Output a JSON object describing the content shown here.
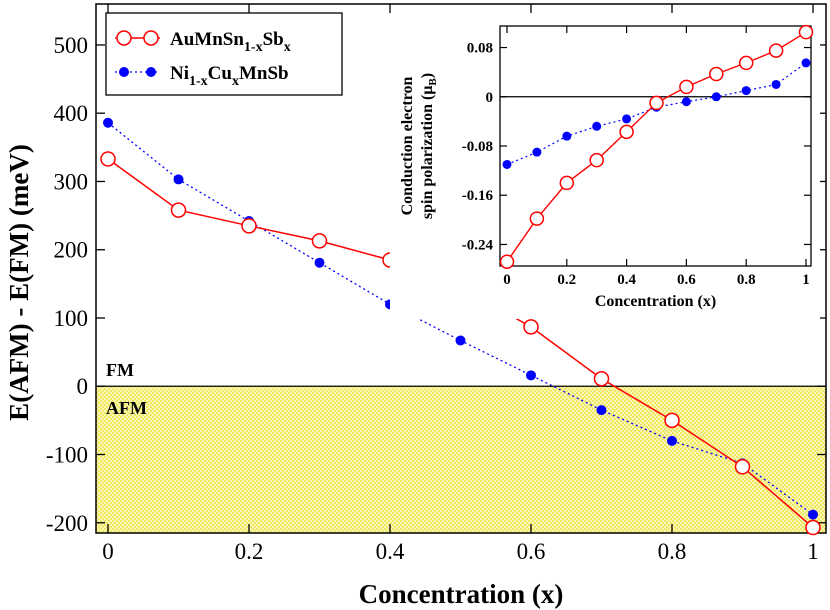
{
  "chart_data": [
    {
      "type": "line",
      "xlabel": "Concentration  (x)",
      "ylabel": "E(AFM) - E(FM)   (meV)",
      "xlim": [
        0,
        1
      ],
      "ylim": [
        -215,
        560
      ],
      "x_ticks": [
        0,
        0.2,
        0.4,
        0.6,
        0.8,
        1
      ],
      "x_tick_labels": [
        "0",
        "0.2",
        "0.4",
        "0.6",
        "0.8",
        "1"
      ],
      "y_ticks": [
        -200,
        -100,
        0,
        100,
        200,
        300,
        400,
        500
      ],
      "y_tick_labels": [
        "-200",
        "-100",
        "0",
        "100",
        "200",
        "300",
        "400",
        "500"
      ],
      "grid": false,
      "legend_position": "top-left",
      "regions": [
        {
          "label": "FM",
          "range": "above 0",
          "color": "#ffffff"
        },
        {
          "label": "AFM",
          "range": "below 0",
          "color": "#f5f07a"
        }
      ],
      "series": [
        {
          "name_main": "AuMnSn",
          "name_sub1": "1-x",
          "name_mid": "Sb",
          "name_sub2": "x",
          "color": "#ff0000",
          "marker": "open-circle",
          "line_style": "solid",
          "x": [
            0,
            0.1,
            0.2,
            0.3,
            0.4,
            0.5,
            0.6,
            0.7,
            0.8,
            0.9,
            1.0
          ],
          "y": [
            333,
            258,
            235,
            213,
            185,
            145,
            87,
            11,
            -50,
            -118,
            -207
          ]
        },
        {
          "name_main": "Ni",
          "name_sub1": "1-x",
          "name_mid": "Cu",
          "name_sub2": "x",
          "name_tail": "MnSb",
          "color": "#0000ff",
          "marker": "filled-circle",
          "line_style": "dotted",
          "x": [
            0,
            0.1,
            0.2,
            0.3,
            0.4,
            0.5,
            0.6,
            0.7,
            0.8,
            0.9,
            1.0
          ],
          "y": [
            386,
            303,
            242,
            181,
            120,
            67,
            16,
            -35,
            -80,
            -113,
            -188
          ]
        }
      ]
    },
    {
      "type": "line",
      "xlabel": "Concentration  (x)",
      "ylabel_line1": "Conduction electron",
      "ylabel_line2": "spin polarization (μ",
      "ylabel_sub": "B",
      "ylabel_close": ")",
      "xlim": [
        0,
        1
      ],
      "ylim": [
        -0.275,
        0.115
      ],
      "x_ticks": [
        0,
        0.2,
        0.4,
        0.6,
        0.8,
        1
      ],
      "x_tick_labels": [
        "0",
        "0.2",
        "0.4",
        "0.6",
        "0.8",
        "1"
      ],
      "y_ticks": [
        -0.24,
        -0.16,
        -0.08,
        0,
        0.08
      ],
      "y_tick_labels": [
        "-0.24",
        "-0.16",
        "-0.08",
        "0",
        "0.08"
      ],
      "zero_line": true,
      "series": [
        {
          "color": "#ff0000",
          "marker": "open-circle",
          "line_style": "solid",
          "x": [
            0,
            0.1,
            0.2,
            0.3,
            0.4,
            0.5,
            0.6,
            0.7,
            0.8,
            0.9,
            1.0
          ],
          "y": [
            -0.268,
            -0.198,
            -0.14,
            -0.103,
            -0.057,
            -0.01,
            0.016,
            0.037,
            0.055,
            0.075,
            0.105
          ]
        },
        {
          "color": "#0000ff",
          "marker": "filled-circle",
          "line_style": "dotted",
          "x": [
            0,
            0.1,
            0.2,
            0.3,
            0.4,
            0.5,
            0.6,
            0.7,
            0.8,
            0.9,
            1.0
          ],
          "y": [
            -0.11,
            -0.09,
            -0.064,
            -0.048,
            -0.036,
            -0.017,
            -0.008,
            0.0,
            0.01,
            0.02,
            0.055
          ]
        }
      ]
    }
  ]
}
